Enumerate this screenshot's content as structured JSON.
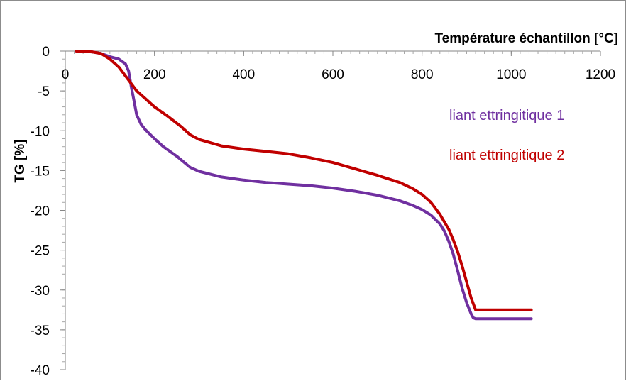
{
  "chart_data": {
    "type": "line",
    "xlabel": "Température échantillon [°C]",
    "ylabel": "TG [%]",
    "xlim": [
      0,
      1200
    ],
    "ylim": [
      -40,
      0
    ],
    "x_ticks": [
      0,
      200,
      400,
      600,
      800,
      1000,
      1200
    ],
    "y_ticks": [
      0,
      -5,
      -10,
      -15,
      -20,
      -25,
      -30,
      -35,
      -40
    ],
    "x_axis_position": "top",
    "grid": false,
    "legend_placement": "right",
    "series": [
      {
        "name": "liant ettringitique 1",
        "color": "#7030A0",
        "x": [
          25,
          60,
          80,
          100,
          120,
          135,
          142,
          148,
          155,
          160,
          170,
          180,
          200,
          220,
          250,
          280,
          300,
          350,
          400,
          450,
          500,
          550,
          600,
          650,
          700,
          750,
          780,
          800,
          820,
          840,
          850,
          860,
          870,
          880,
          890,
          900,
          910,
          915,
          920,
          1045
        ],
        "y": [
          0,
          -0.1,
          -0.3,
          -0.7,
          -1.0,
          -1.6,
          -2.5,
          -4.5,
          -6.5,
          -8.0,
          -9.2,
          -9.9,
          -11.0,
          -12.0,
          -13.2,
          -14.6,
          -15.1,
          -15.8,
          -16.2,
          -16.5,
          -16.7,
          -16.9,
          -17.2,
          -17.6,
          -18.1,
          -18.8,
          -19.4,
          -19.9,
          -20.6,
          -21.7,
          -22.6,
          -23.9,
          -25.5,
          -27.6,
          -29.8,
          -31.6,
          -33.0,
          -33.5,
          -33.6,
          -33.6
        ]
      },
      {
        "name": "liant ettringitique 2",
        "color": "#C00000",
        "x": [
          25,
          60,
          80,
          100,
          120,
          140,
          160,
          180,
          200,
          230,
          260,
          280,
          300,
          350,
          400,
          450,
          500,
          550,
          600,
          650,
          700,
          750,
          780,
          800,
          820,
          840,
          860,
          870,
          880,
          890,
          900,
          910,
          920,
          1045
        ],
        "y": [
          0,
          -0.1,
          -0.3,
          -1.0,
          -2.0,
          -3.5,
          -5.0,
          -6.0,
          -7.0,
          -8.2,
          -9.5,
          -10.5,
          -11.1,
          -11.9,
          -12.3,
          -12.6,
          -12.9,
          -13.4,
          -14.0,
          -14.8,
          -15.6,
          -16.5,
          -17.3,
          -18.0,
          -19.0,
          -20.5,
          -22.4,
          -23.7,
          -25.2,
          -27.0,
          -29.0,
          -31.0,
          -32.5,
          -32.5
        ]
      }
    ]
  }
}
